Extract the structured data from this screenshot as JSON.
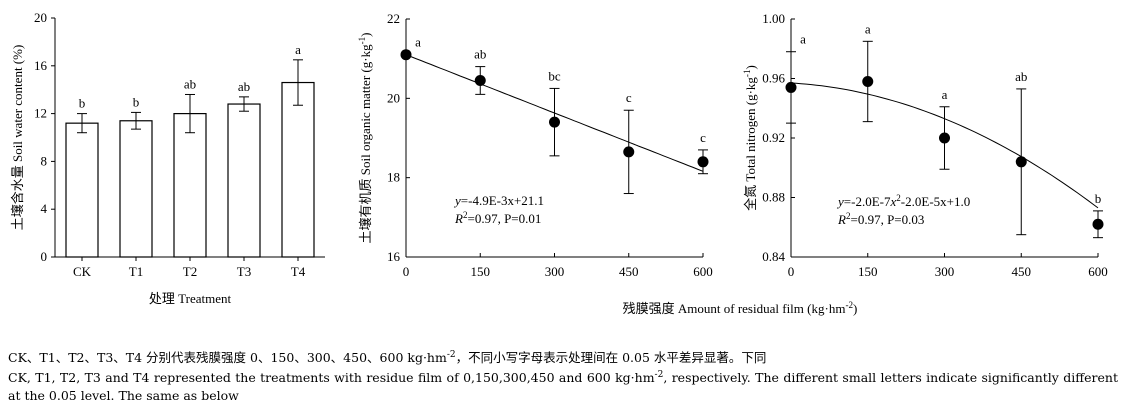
{
  "shared_xlabel": "残膜强度 Amount of residual film (kg·hm-2)",
  "caption": {
    "cn": "CK、T1、T2、T3、T4 分别代表残膜强度 0、150、300、450、600 kg·hm-2，不同小写字母表示处理间在 0.05 水平差异显著。下同",
    "en": "CK, T1, T2, T3 and T4 represented the treatments with residue film of 0,150,300,450 and 600 kg·hm-2, respectively. The different small letters indicate significantly different at the 0.05 level. The same as below"
  },
  "chart_data": [
    {
      "type": "bar",
      "categories": [
        "CK",
        "T1",
        "T2",
        "T3",
        "T4"
      ],
      "values": [
        11.2,
        11.4,
        12.0,
        12.8,
        14.6
      ],
      "errors": [
        0.8,
        0.7,
        1.6,
        0.6,
        1.9
      ],
      "letters": [
        "b",
        "b",
        "ab",
        "ab",
        "a"
      ],
      "xlabel": "处理 Treatment",
      "ylabel": "土壤含水量 Soil water content (%)",
      "ylim": [
        0,
        20
      ],
      "yticks": [
        0,
        4,
        8,
        12,
        16,
        20
      ]
    },
    {
      "type": "scatter",
      "x": [
        0,
        150,
        300,
        450,
        600
      ],
      "y": [
        21.1,
        20.45,
        19.4,
        18.65,
        18.4
      ],
      "errors": [
        0.0,
        0.35,
        0.85,
        1.05,
        0.3
      ],
      "letters": [
        "a",
        "ab",
        "bc",
        "c",
        "c"
      ],
      "trend": {
        "type": "linear",
        "slope": -0.0049,
        "intercept": 21.1
      },
      "equation": "y=-4.9E-3x+21.1",
      "stats": "R2=0.97, P=0.01",
      "ylabel": "土壤有机质 Soil organic matter (g·kg-1)",
      "xlim": [
        0,
        600
      ],
      "ylim": [
        16,
        22
      ],
      "xticks": [
        0,
        150,
        300,
        450,
        600
      ],
      "yticks": [
        16,
        18,
        20,
        22
      ]
    },
    {
      "type": "scatter",
      "x": [
        0,
        150,
        300,
        450,
        600
      ],
      "y": [
        0.954,
        0.958,
        0.92,
        0.904,
        0.862
      ],
      "errors": [
        0.024,
        0.027,
        0.021,
        0.049,
        0.009
      ],
      "letters": [
        "a",
        "a",
        "a",
        "ab",
        "b"
      ],
      "trend": {
        "type": "quadratic",
        "a": -2e-07,
        "b": -2e-05,
        "c": 0.957
      },
      "equation": "y=-2.0E-7x2-2.0E-5x+1.0",
      "stats": "R2=0.97, P=0.03",
      "ylabel": "全氮 Total nitrogen (g·kg-1)",
      "xlim": [
        0,
        600
      ],
      "ylim": [
        0.84,
        1.0
      ],
      "xticks": [
        0,
        150,
        300,
        450,
        600
      ],
      "yticks": [
        "0.84",
        "0.88",
        "0.92",
        "0.96",
        "1.00"
      ]
    }
  ]
}
